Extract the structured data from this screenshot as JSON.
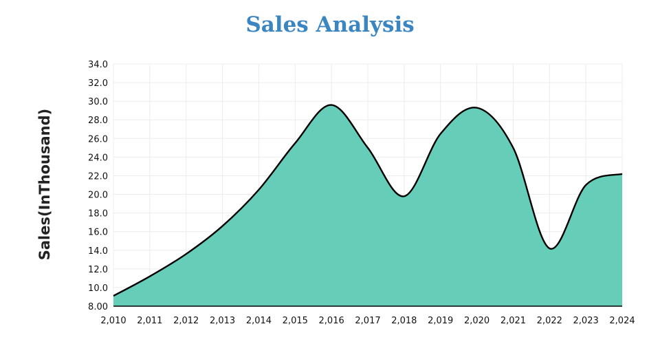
{
  "chart_data": {
    "type": "area",
    "title": "Sales Analysis",
    "xlabel": "",
    "ylabel": "Sales(InThousand)",
    "x": [
      2010,
      2011,
      2012,
      2013,
      2014,
      2015,
      2016,
      2017,
      2018,
      2019,
      2020,
      2021,
      2022,
      2023,
      2024
    ],
    "x_tick_labels": [
      "2,010",
      "2,011",
      "2,012",
      "2,013",
      "2,014",
      "2,015",
      "2,016",
      "2,017",
      "2,018",
      "2,019",
      "2,020",
      "2,021",
      "2,022",
      "2,023",
      "2,024"
    ],
    "series": [
      {
        "values": [
          9.1,
          11.2,
          13.6,
          16.6,
          20.5,
          25.5,
          29.6,
          25.0,
          19.8,
          26.5,
          29.3,
          25.0,
          14.2,
          21.0,
          22.2
        ]
      }
    ],
    "ylim": [
      8,
      34
    ],
    "y_tick_labels": [
      "8.00",
      "10.0",
      "12.0",
      "14.0",
      "16.0",
      "18.0",
      "20.0",
      "22.0",
      "24.0",
      "26.0",
      "28.0",
      "30.0",
      "32.0",
      "34.0"
    ],
    "grid": true,
    "legend": "none",
    "colors": {
      "fill": "#66cdb8",
      "line": "#000000",
      "title": "#3a85c2"
    }
  }
}
